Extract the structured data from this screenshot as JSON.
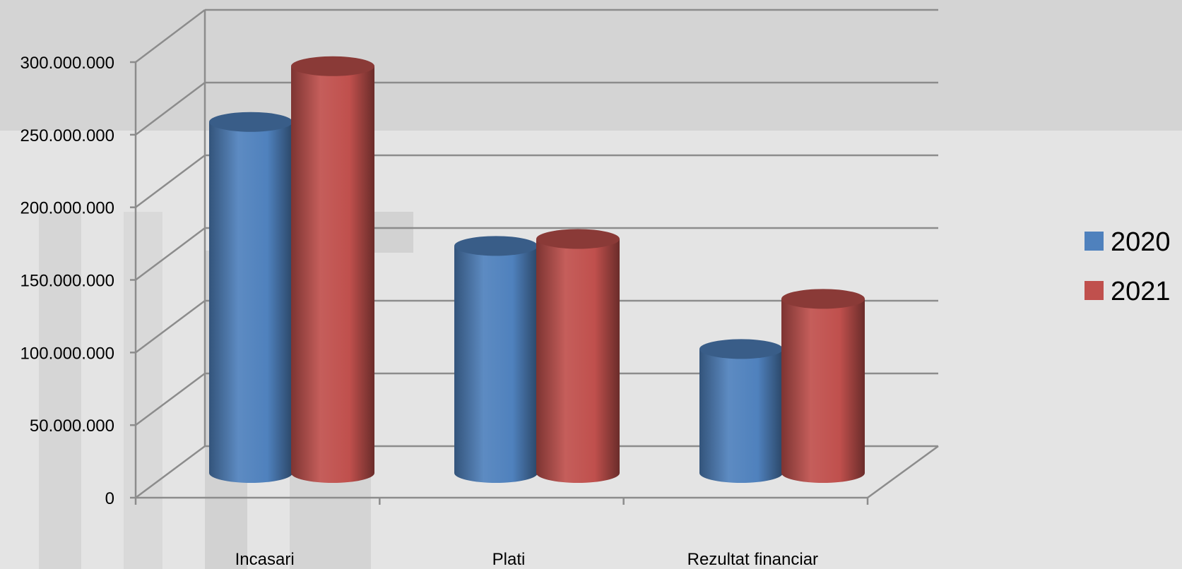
{
  "chart_data": {
    "type": "bar",
    "style": "3d-cylinder",
    "categories": [
      "Incasari",
      "Plati",
      "Rezultat financiar"
    ],
    "series": [
      {
        "name": "2020",
        "color": "#4f81bd",
        "values": [
          252000000,
          163000000,
          89000000
        ]
      },
      {
        "name": "2021",
        "color": "#c0504d",
        "values": [
          292000000,
          168000000,
          125000000
        ]
      }
    ],
    "yticks": [
      "0",
      "50.000.000",
      "100.000.000",
      "150.000.000",
      "200.000.000",
      "250.000.000",
      "300.000.000"
    ],
    "ylim": [
      0,
      300000000
    ],
    "grid": true,
    "legend_position": "right"
  }
}
